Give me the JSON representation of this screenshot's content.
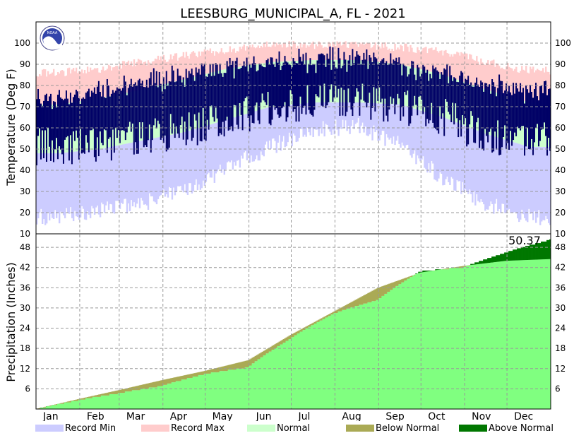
{
  "chart_data": {
    "type": "area",
    "title": "LEESBURG_MUNICIPAL_A, FL - 2021",
    "months": [
      "Jan",
      "Feb",
      "Mar",
      "Apr",
      "May",
      "Jun",
      "Jul",
      "Aug",
      "Sep",
      "Oct",
      "Nov",
      "Dec"
    ],
    "temperature": {
      "ylabel": "Temperature (Deg F)",
      "ylim": [
        10,
        110
      ],
      "ticks": [
        100,
        90,
        80,
        70,
        60,
        50,
        40,
        30,
        20,
        10
      ],
      "monthly_approx": {
        "record_max": [
          86,
          88,
          91,
          94,
          97,
          99,
          99,
          99,
          98,
          96,
          91,
          87
        ],
        "normal_max": [
          71,
          74,
          78,
          83,
          88,
          91,
          92,
          92,
          90,
          85,
          78,
          72
        ],
        "normal_min": [
          48,
          50,
          54,
          58,
          64,
          70,
          72,
          72,
          71,
          65,
          57,
          51
        ],
        "record_min": [
          22,
          25,
          28,
          35,
          45,
          55,
          63,
          65,
          56,
          40,
          28,
          22
        ],
        "observed_max": [
          74,
          77,
          82,
          84,
          88,
          91,
          92,
          93,
          90,
          86,
          80,
          77
        ],
        "observed_min": [
          52,
          53,
          57,
          60,
          65,
          71,
          73,
          73,
          71,
          66,
          57,
          55
        ]
      }
    },
    "precipitation": {
      "ylabel": "Precipitation (Inches)",
      "ylim": [
        0,
        52
      ],
      "ticks": [
        48,
        42,
        36,
        30,
        24,
        18,
        12,
        6
      ],
      "total_label": "50.37",
      "observed_cumulative_month_end": [
        2.8,
        4.8,
        7.0,
        10.5,
        12.5,
        21.0,
        28.5,
        32.5,
        41.0,
        42.2,
        46.6,
        50.37
      ],
      "normal_cumulative_month_end": [
        3.0,
        5.6,
        8.6,
        11.3,
        14.5,
        22.0,
        29.0,
        36.0,
        40.5,
        42.5,
        44.0,
        44.5
      ]
    },
    "legend": [
      {
        "label": "Record Min",
        "color": "#ccccff"
      },
      {
        "label": "Record Max",
        "color": "#ffcccc"
      },
      {
        "label": "Normal",
        "color": "#ccffcc"
      },
      {
        "label": "Below Normal",
        "color": "#aaaa55"
      },
      {
        "label": "Above Normal",
        "color": "#007700"
      }
    ],
    "colors": {
      "observed_temp": "#000066",
      "normal_precip": "#80ff80",
      "grid": "#999999"
    }
  }
}
